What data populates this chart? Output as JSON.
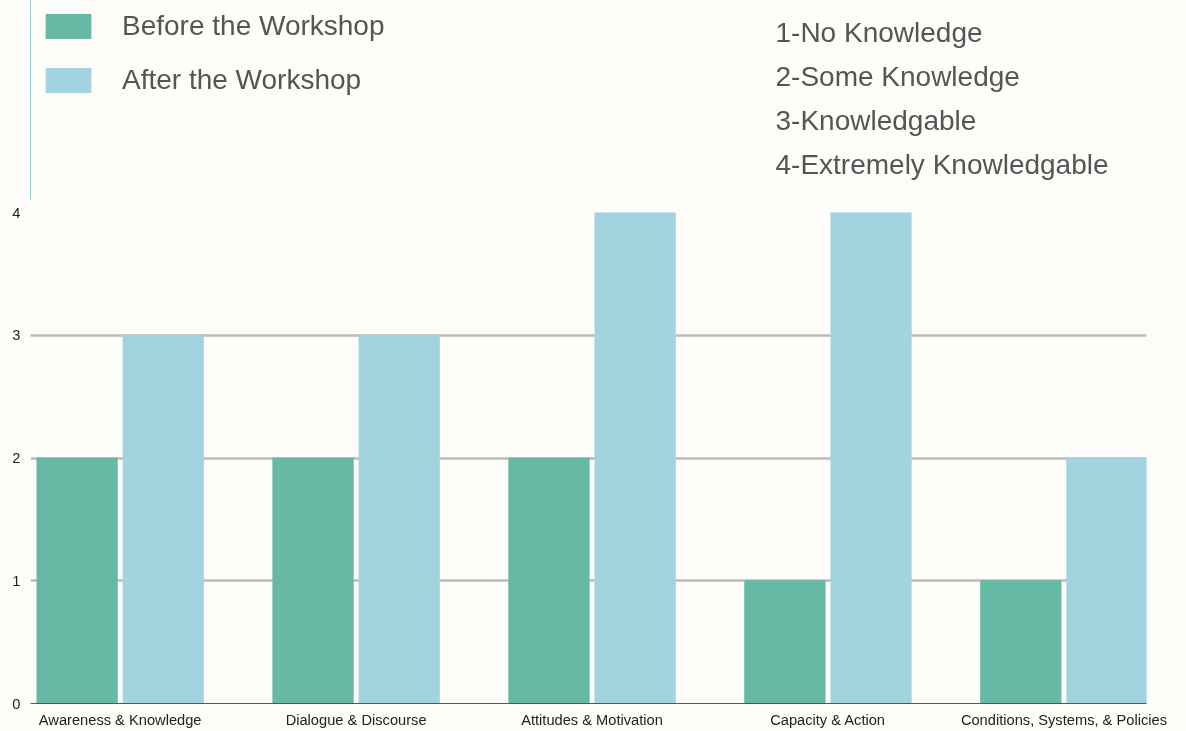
{
  "chart_data": {
    "type": "bar",
    "categories": [
      "Awareness & Knowledge",
      "Dialogue & Discourse",
      "Attitudes & Motivation",
      "Capacity & Action",
      "Conditions, Systems, & Policies"
    ],
    "series": [
      {
        "name": "Before the Workshop",
        "color": "#66b9a2",
        "values": [
          2,
          2,
          2,
          1,
          1
        ]
      },
      {
        "name": "After the Workshop",
        "color": "#a2d4df",
        "values": [
          3,
          3,
          4,
          4,
          2
        ]
      }
    ],
    "ylim": [
      0,
      4
    ],
    "yticks": [
      0,
      1,
      2,
      3,
      4
    ],
    "grid": "y",
    "legend": "top left",
    "annotations": [
      "1-No Knowledge",
      "2-Some Knowledge",
      "3-Knowledgable",
      "4-Extremely Knowledgable"
    ]
  }
}
